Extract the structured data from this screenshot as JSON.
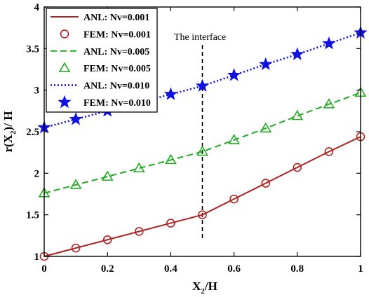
{
  "chart_data": {
    "type": "line",
    "xlabel": {
      "main": "X",
      "sub": "2",
      "rest": "/H"
    },
    "ylabel": {
      "main": "r(X",
      "sub": "2",
      "rest": ")/ H"
    },
    "xlim": [
      0,
      1
    ],
    "ylim": [
      1,
      4
    ],
    "xticks": [
      0,
      0.2,
      0.4,
      0.6,
      0.8,
      1
    ],
    "xtick_labels": [
      "0",
      "0.2",
      "0.4",
      "0.6",
      "0.8",
      "1"
    ],
    "yticks": [
      1,
      1.5,
      2,
      2.5,
      3,
      3.5,
      4
    ],
    "ytick_labels": [
      "1",
      "1.5",
      "2",
      "2.5",
      "3",
      "3.5",
      "4"
    ],
    "grid": false,
    "legend_position": "top-left",
    "annotation": {
      "text": "The interface",
      "x": 0.5
    },
    "series": [
      {
        "name": "ANL: Nv=0.001",
        "kind": "line",
        "style": "solid",
        "color": "#b22222",
        "x": [
          0,
          0.1,
          0.2,
          0.3,
          0.4,
          0.5,
          0.6,
          0.7,
          0.8,
          0.9,
          1.0
        ],
        "y": [
          1.0,
          1.1,
          1.2,
          1.3,
          1.4,
          1.5,
          1.69,
          1.88,
          2.07,
          2.26,
          2.44
        ]
      },
      {
        "name": "FEM: Nv=0.001",
        "kind": "marker",
        "marker": "circle",
        "color": "#b22222",
        "x": [
          0,
          0.1,
          0.2,
          0.3,
          0.4,
          0.5,
          0.6,
          0.7,
          0.8,
          0.9,
          1.0
        ],
        "y": [
          1.0,
          1.1,
          1.2,
          1.3,
          1.4,
          1.5,
          1.69,
          1.88,
          2.07,
          2.26,
          2.44
        ]
      },
      {
        "name": "ANL: Nv=0.005",
        "kind": "line",
        "style": "dashed",
        "color": "#22aa22",
        "x": [
          0,
          0.1,
          0.2,
          0.3,
          0.4,
          0.5,
          0.6,
          0.7,
          0.8,
          0.9,
          1.0
        ],
        "y": [
          1.76,
          1.86,
          1.96,
          2.06,
          2.16,
          2.26,
          2.4,
          2.54,
          2.69,
          2.83,
          2.97
        ]
      },
      {
        "name": "FEM: Nv=0.005",
        "kind": "marker",
        "marker": "triangle",
        "color": "#22aa22",
        "x": [
          0,
          0.1,
          0.2,
          0.3,
          0.4,
          0.5,
          0.6,
          0.7,
          0.8,
          0.9,
          1.0
        ],
        "y": [
          1.76,
          1.86,
          1.96,
          2.06,
          2.16,
          2.26,
          2.4,
          2.54,
          2.69,
          2.83,
          2.97
        ]
      },
      {
        "name": "ANL: Nv=0.010",
        "kind": "line",
        "style": "dotted",
        "color": "#1010e0",
        "x": [
          0,
          0.1,
          0.2,
          0.3,
          0.4,
          0.5,
          0.6,
          0.7,
          0.8,
          0.9,
          1.0
        ],
        "y": [
          2.55,
          2.65,
          2.75,
          2.85,
          2.95,
          3.05,
          3.18,
          3.31,
          3.43,
          3.56,
          3.69
        ]
      },
      {
        "name": "FEM: Nv=0.010",
        "kind": "marker",
        "marker": "star",
        "color": "#1010e0",
        "x": [
          0,
          0.1,
          0.2,
          0.3,
          0.4,
          0.5,
          0.6,
          0.7,
          0.8,
          0.9,
          1.0
        ],
        "y": [
          2.55,
          2.65,
          2.75,
          2.85,
          2.95,
          3.05,
          3.18,
          3.31,
          3.43,
          3.56,
          3.69
        ]
      }
    ]
  }
}
